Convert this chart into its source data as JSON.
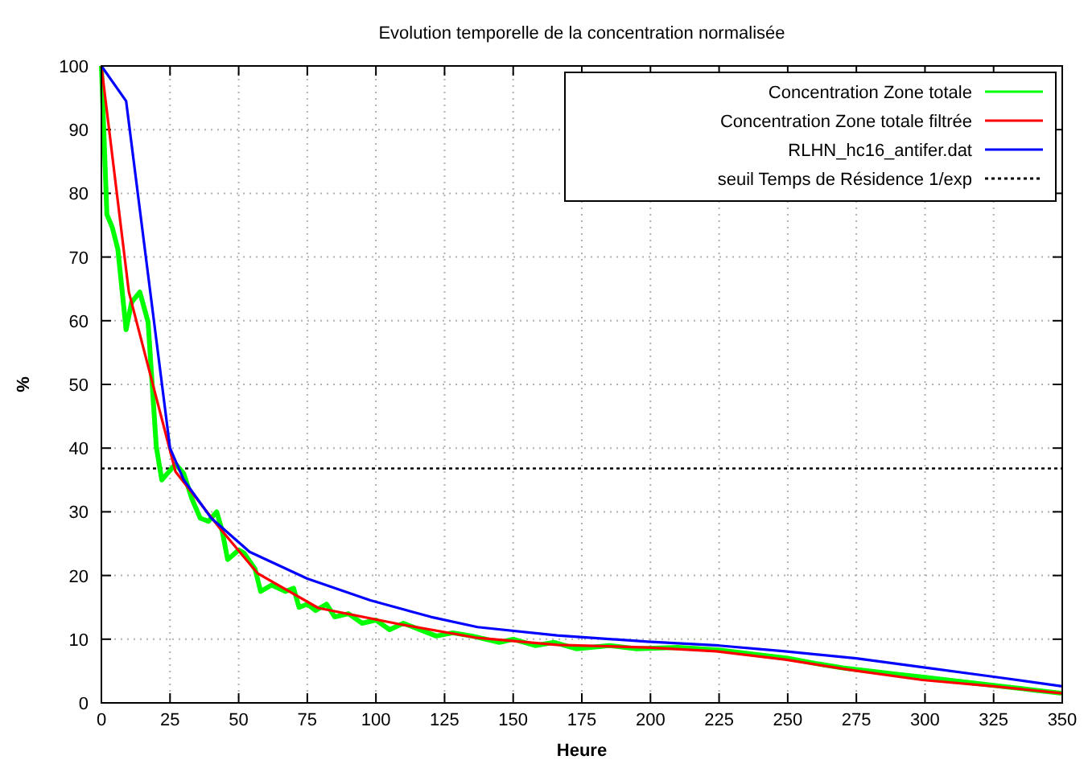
{
  "chart_data": {
    "type": "line",
    "title": "Evolution temporelle de la concentration normalisée",
    "xlabel": "Heure",
    "ylabel": "%",
    "xlim": [
      0,
      350
    ],
    "ylim": [
      0,
      100
    ],
    "xticks": [
      0,
      25,
      50,
      75,
      100,
      125,
      150,
      175,
      200,
      225,
      250,
      275,
      300,
      325,
      350
    ],
    "yticks": [
      0,
      10,
      20,
      30,
      40,
      50,
      60,
      70,
      80,
      90,
      100
    ],
    "grid": true,
    "legend": "top right",
    "line_style": "solid",
    "marker": "none",
    "series": [
      {
        "name": "Concentration Zone totale",
        "color": "#00ff00",
        "x": [
          0,
          2,
          4,
          6,
          9,
          11,
          14,
          17,
          20,
          22,
          24,
          27,
          30,
          33,
          36,
          39,
          42,
          44,
          46,
          50,
          52,
          56,
          58,
          62,
          67,
          70,
          72,
          75,
          78,
          82,
          85,
          90,
          95,
          100,
          105,
          110,
          116,
          122,
          128,
          135,
          145,
          150,
          158,
          165,
          173,
          185,
          195,
          210,
          225,
          240,
          250,
          260,
          270,
          280,
          290,
          300,
          310,
          320,
          330,
          340,
          350
        ],
        "values": [
          100,
          76.7,
          74.6,
          71.2,
          58.6,
          62.9,
          64.5,
          59.8,
          40.2,
          35,
          36,
          37.5,
          36,
          32,
          29,
          28.5,
          30,
          27,
          22.5,
          24,
          23.5,
          21,
          17.5,
          18.5,
          17.5,
          18,
          15,
          15.5,
          14.5,
          15.5,
          13.5,
          14,
          12.5,
          13,
          11.5,
          12.5,
          11.5,
          10.5,
          11,
          10.5,
          9.5,
          10,
          9,
          9.5,
          8.5,
          9,
          8.5,
          8.7,
          8.3,
          7.5,
          7,
          6.2,
          5.5,
          5,
          4.5,
          4,
          3.5,
          3,
          2.5,
          2,
          1.5
        ]
      },
      {
        "name": "Concentration Zone totale filtrée",
        "color": "#ff0000",
        "x": [
          0,
          10,
          27,
          43,
          57,
          79,
          108,
          137,
          166,
          199,
          224,
          249,
          274,
          299,
          325,
          350
        ],
        "values": [
          100,
          64.5,
          36.3,
          27.5,
          20.3,
          14.9,
          12.4,
          10.2,
          9.1,
          8.7,
          8.1,
          6.8,
          5.1,
          3.6,
          2.6,
          1.5
        ]
      },
      {
        "name": "RLHN_hc16_antifer.dat",
        "color": "#0000ff",
        "x": [
          0,
          9,
          25,
          30,
          40,
          54,
          75,
          98,
          120,
          137,
          166,
          199,
          225,
          249,
          275,
          299,
          325,
          350
        ],
        "values": [
          100,
          94.5,
          40,
          35,
          29,
          23.7,
          19.5,
          16.1,
          13.5,
          11.9,
          10.6,
          9.6,
          9,
          8.1,
          7,
          5.6,
          4.1,
          2.6
        ]
      }
    ],
    "ref_lines": [
      {
        "axis": "y",
        "value": 36.8,
        "label": "seuil Temps de Résidence 1/exp",
        "color": "#000000",
        "line_style": "dotted"
      }
    ]
  }
}
